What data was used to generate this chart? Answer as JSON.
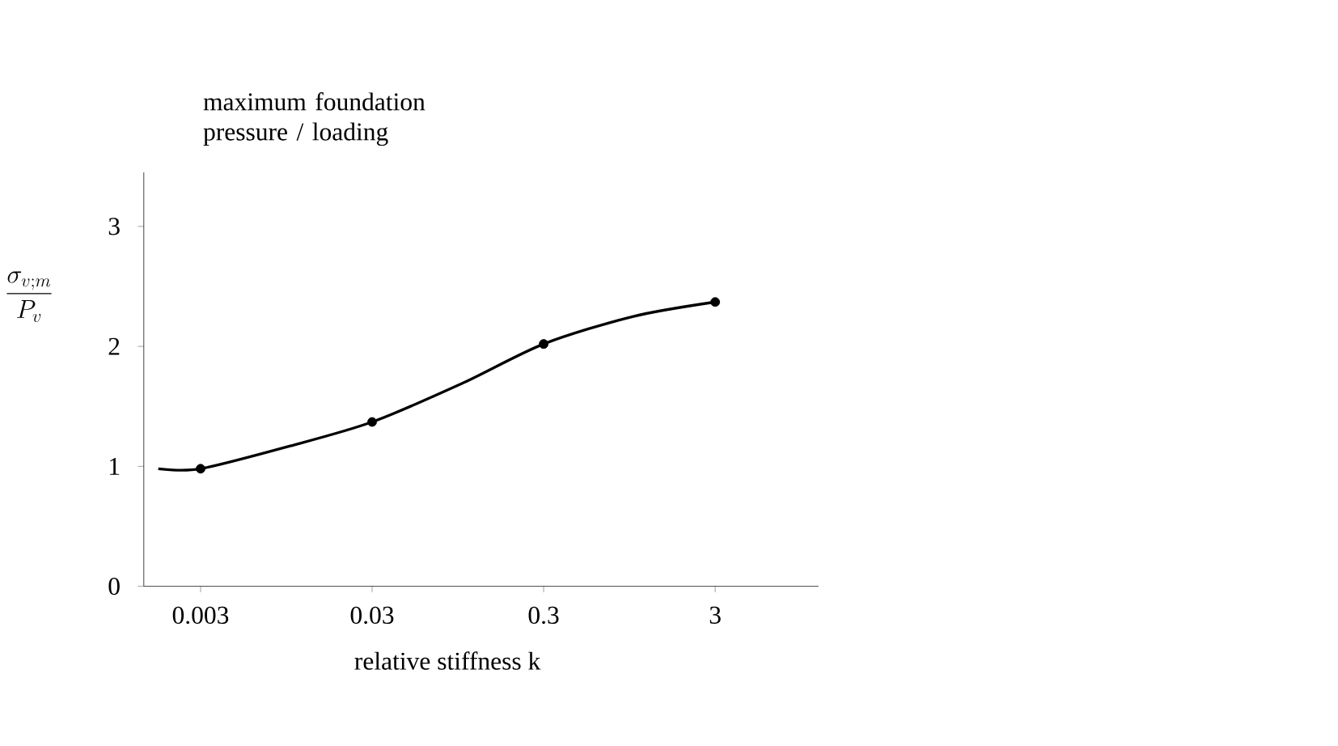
{
  "chart_data": {
    "type": "line",
    "title": "maximum foundation pressure / loading",
    "xlabel": "relative stiffness k",
    "ylabel": "\\dfrac{\\sigma_{v;m}}{P_v}",
    "log": "x",
    "xlim": [
      0.0014,
      12
    ],
    "xticks": [
      0.003,
      0.03,
      0.3,
      3
    ],
    "ylim": [
      0,
      3.45
    ],
    "yticks": [
      0,
      1,
      2,
      3
    ],
    "series": [
      {
        "type": "line",
        "color": "#000000",
        "marker": "none",
        "x": [
          0.0017,
          0.003,
          0.01,
          0.03,
          0.1,
          0.3,
          1,
          3
        ],
        "values": [
          0.98,
          0.98,
          1.17,
          1.37,
          1.69,
          2.02,
          2.25,
          2.37
        ]
      },
      {
        "type": "scatter",
        "color": "#000000",
        "marker": "circle",
        "x": [
          0.003,
          0.03,
          0.3,
          3
        ],
        "values": [
          0.98,
          1.37,
          2.02,
          2.37
        ]
      }
    ]
  }
}
